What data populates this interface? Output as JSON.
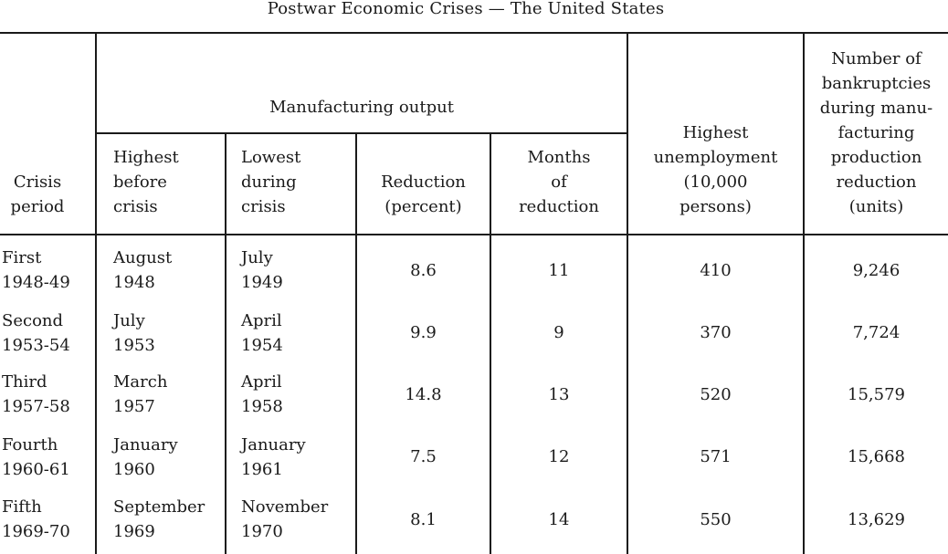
{
  "title": "Postwar Economic Crises — The United States",
  "headers": {
    "crisis_period": "Crisis\nperiod",
    "manufacturing_output": "Manufacturing output",
    "highest_before": "Highest\nbefore\ncrisis",
    "lowest_during": "Lowest\nduring\ncrisis",
    "reduction_percent": "Reduction\n(percent)",
    "months_of_reduction": "Months\nof\nreduction",
    "highest_unemployment": "Highest\nunemployment\n(10,000\npersons)",
    "bankruptcies": "Number of\nbankruptcies\nduring manu-\nfacturing\nproduction\nreduction\n(units)"
  },
  "rows": [
    {
      "period": "First\n1948-49",
      "highest": "August\n1948",
      "lowest": "July\n1949",
      "reduction": "8.6",
      "months": "11",
      "unemployment": "410",
      "bankruptcies": "9,246"
    },
    {
      "period": "Second\n1953-54",
      "highest": "July\n1953",
      "lowest": "April\n1954",
      "reduction": "9.9",
      "months": "9",
      "unemployment": "370",
      "bankruptcies": "7,724"
    },
    {
      "period": "Third\n1957-58",
      "highest": "March\n1957",
      "lowest": "April\n1958",
      "reduction": "14.8",
      "months": "13",
      "unemployment": "520",
      "bankruptcies": "15,579"
    },
    {
      "period": "Fourth\n1960-61",
      "highest": "January\n1960",
      "lowest": "January\n1961",
      "reduction": "7.5",
      "months": "12",
      "unemployment": "571",
      "bankruptcies": "15,668"
    },
    {
      "period": "Fifth\n1969-70",
      "highest": "September\n1969",
      "lowest": "November\n1970",
      "reduction": "8.1",
      "months": "14",
      "unemployment": "550",
      "bankruptcies": "13,629"
    }
  ]
}
